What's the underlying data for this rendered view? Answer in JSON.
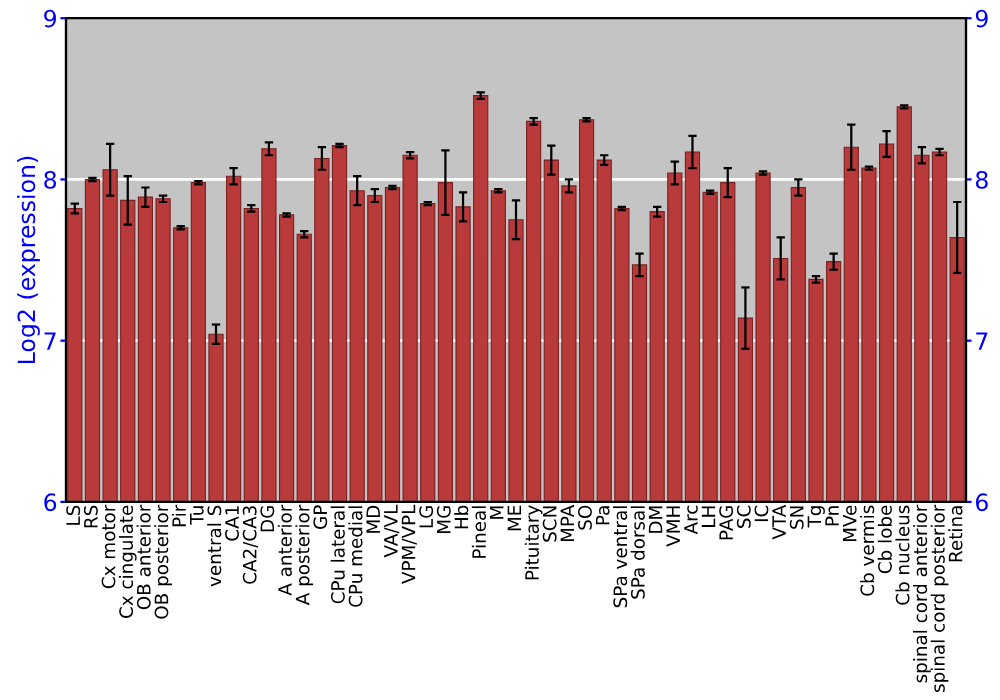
{
  "chart_data": {
    "type": "bar",
    "ylabel": "Log2 (expression)",
    "categories": [
      "LS",
      "RS",
      "Cx motor",
      "Cx cingulate",
      "OB anterior",
      "OB posterior",
      "Pir",
      "Tu",
      "ventral S",
      "CA1",
      "CA2/CA3",
      "DG",
      "A anterior",
      "A posterior",
      "GP",
      "CPu lateral",
      "CPu medial",
      "MD",
      "VA/VL",
      "VPM/VPL",
      "LG",
      "MG",
      "Hb",
      "Pineal",
      "M",
      "ME",
      "Pituitary",
      "SCN",
      "MPA",
      "SO",
      "Pa",
      "SPa ventral",
      "SPa dorsal",
      "DM",
      "VMH",
      "Arc",
      "LH",
      "PAG",
      "SC",
      "IC",
      "VTA",
      "SN",
      "Tg",
      "Pn",
      "MVe",
      "Cb vermis",
      "Cb lobe",
      "Cb nucleus",
      "spinal cord anterior",
      "spinal cord posterior",
      "Retina"
    ],
    "values": [
      7.82,
      8.0,
      8.06,
      7.87,
      7.89,
      7.88,
      7.7,
      7.98,
      7.04,
      8.02,
      7.82,
      8.19,
      7.78,
      7.66,
      8.13,
      8.21,
      7.93,
      7.9,
      7.95,
      8.15,
      7.85,
      7.98,
      7.83,
      8.52,
      7.93,
      7.75,
      8.36,
      8.12,
      7.96,
      8.37,
      8.12,
      7.82,
      7.47,
      7.8,
      8.04,
      8.17,
      7.92,
      7.98,
      7.14,
      8.04,
      7.51,
      7.95,
      7.38,
      7.49,
      8.2,
      8.07,
      8.22,
      8.45,
      8.15,
      8.17,
      7.64
    ],
    "errors": [
      0.03,
      0.01,
      0.16,
      0.15,
      0.06,
      0.02,
      0.01,
      0.01,
      0.06,
      0.05,
      0.02,
      0.04,
      0.01,
      0.02,
      0.07,
      0.01,
      0.09,
      0.04,
      0.01,
      0.02,
      0.01,
      0.2,
      0.09,
      0.02,
      0.01,
      0.12,
      0.02,
      0.09,
      0.04,
      0.01,
      0.03,
      0.01,
      0.07,
      0.03,
      0.07,
      0.1,
      0.01,
      0.09,
      0.19,
      0.01,
      0.13,
      0.05,
      0.02,
      0.05,
      0.14,
      0.01,
      0.08,
      0.01,
      0.05,
      0.02,
      0.22
    ],
    "color": "#b83a3a",
    "ylim": [
      6,
      9
    ],
    "yticks": [
      6,
      7,
      8,
      9
    ],
    "y2lim": [
      6,
      9
    ],
    "y2ticks": [
      6,
      7,
      8,
      9
    ],
    "grid": "y"
  }
}
